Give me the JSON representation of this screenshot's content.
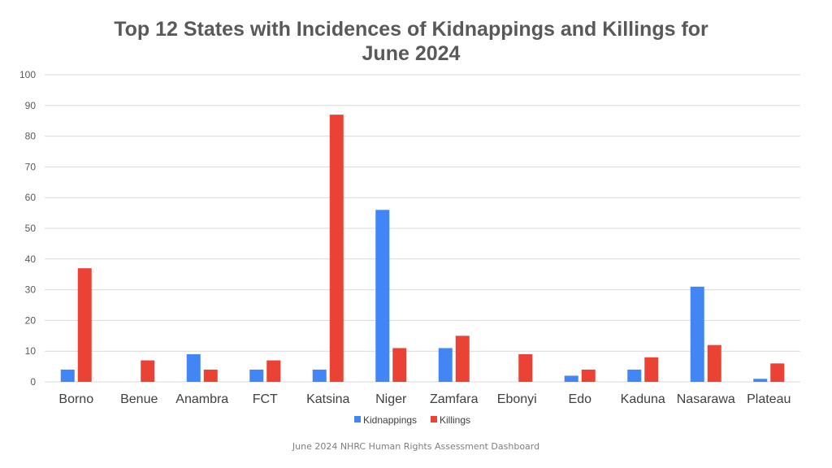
{
  "chart_data": {
    "type": "bar",
    "title_lines": [
      "Top 12 States with Incidences of Kidnappings and Killings for",
      "June 2024"
    ],
    "categories": [
      "Borno",
      "Benue",
      "Anambra",
      "FCT",
      "Katsina",
      "Niger",
      "Zamfara",
      "Ebonyi",
      "Edo",
      "Kaduna",
      "Nasarawa",
      "Plateau"
    ],
    "series": [
      {
        "name": "Kidnappings",
        "color": "#4285f4",
        "values": [
          4,
          0,
          9,
          4,
          4,
          56,
          11,
          0,
          2,
          4,
          31,
          1
        ]
      },
      {
        "name": "Killings",
        "color": "#ea4335",
        "values": [
          37,
          7,
          4,
          7,
          87,
          11,
          15,
          9,
          4,
          8,
          12,
          6
        ]
      }
    ],
    "ylim": [
      0,
      100
    ],
    "yticks": [
      0,
      10,
      20,
      30,
      40,
      50,
      60,
      70,
      80,
      90,
      100
    ],
    "xlabel": "",
    "ylabel": "",
    "grid": true,
    "legend_position": "bottom-center"
  },
  "footer": "June 2024 NHRC Human Rights Assessment Dashboard"
}
